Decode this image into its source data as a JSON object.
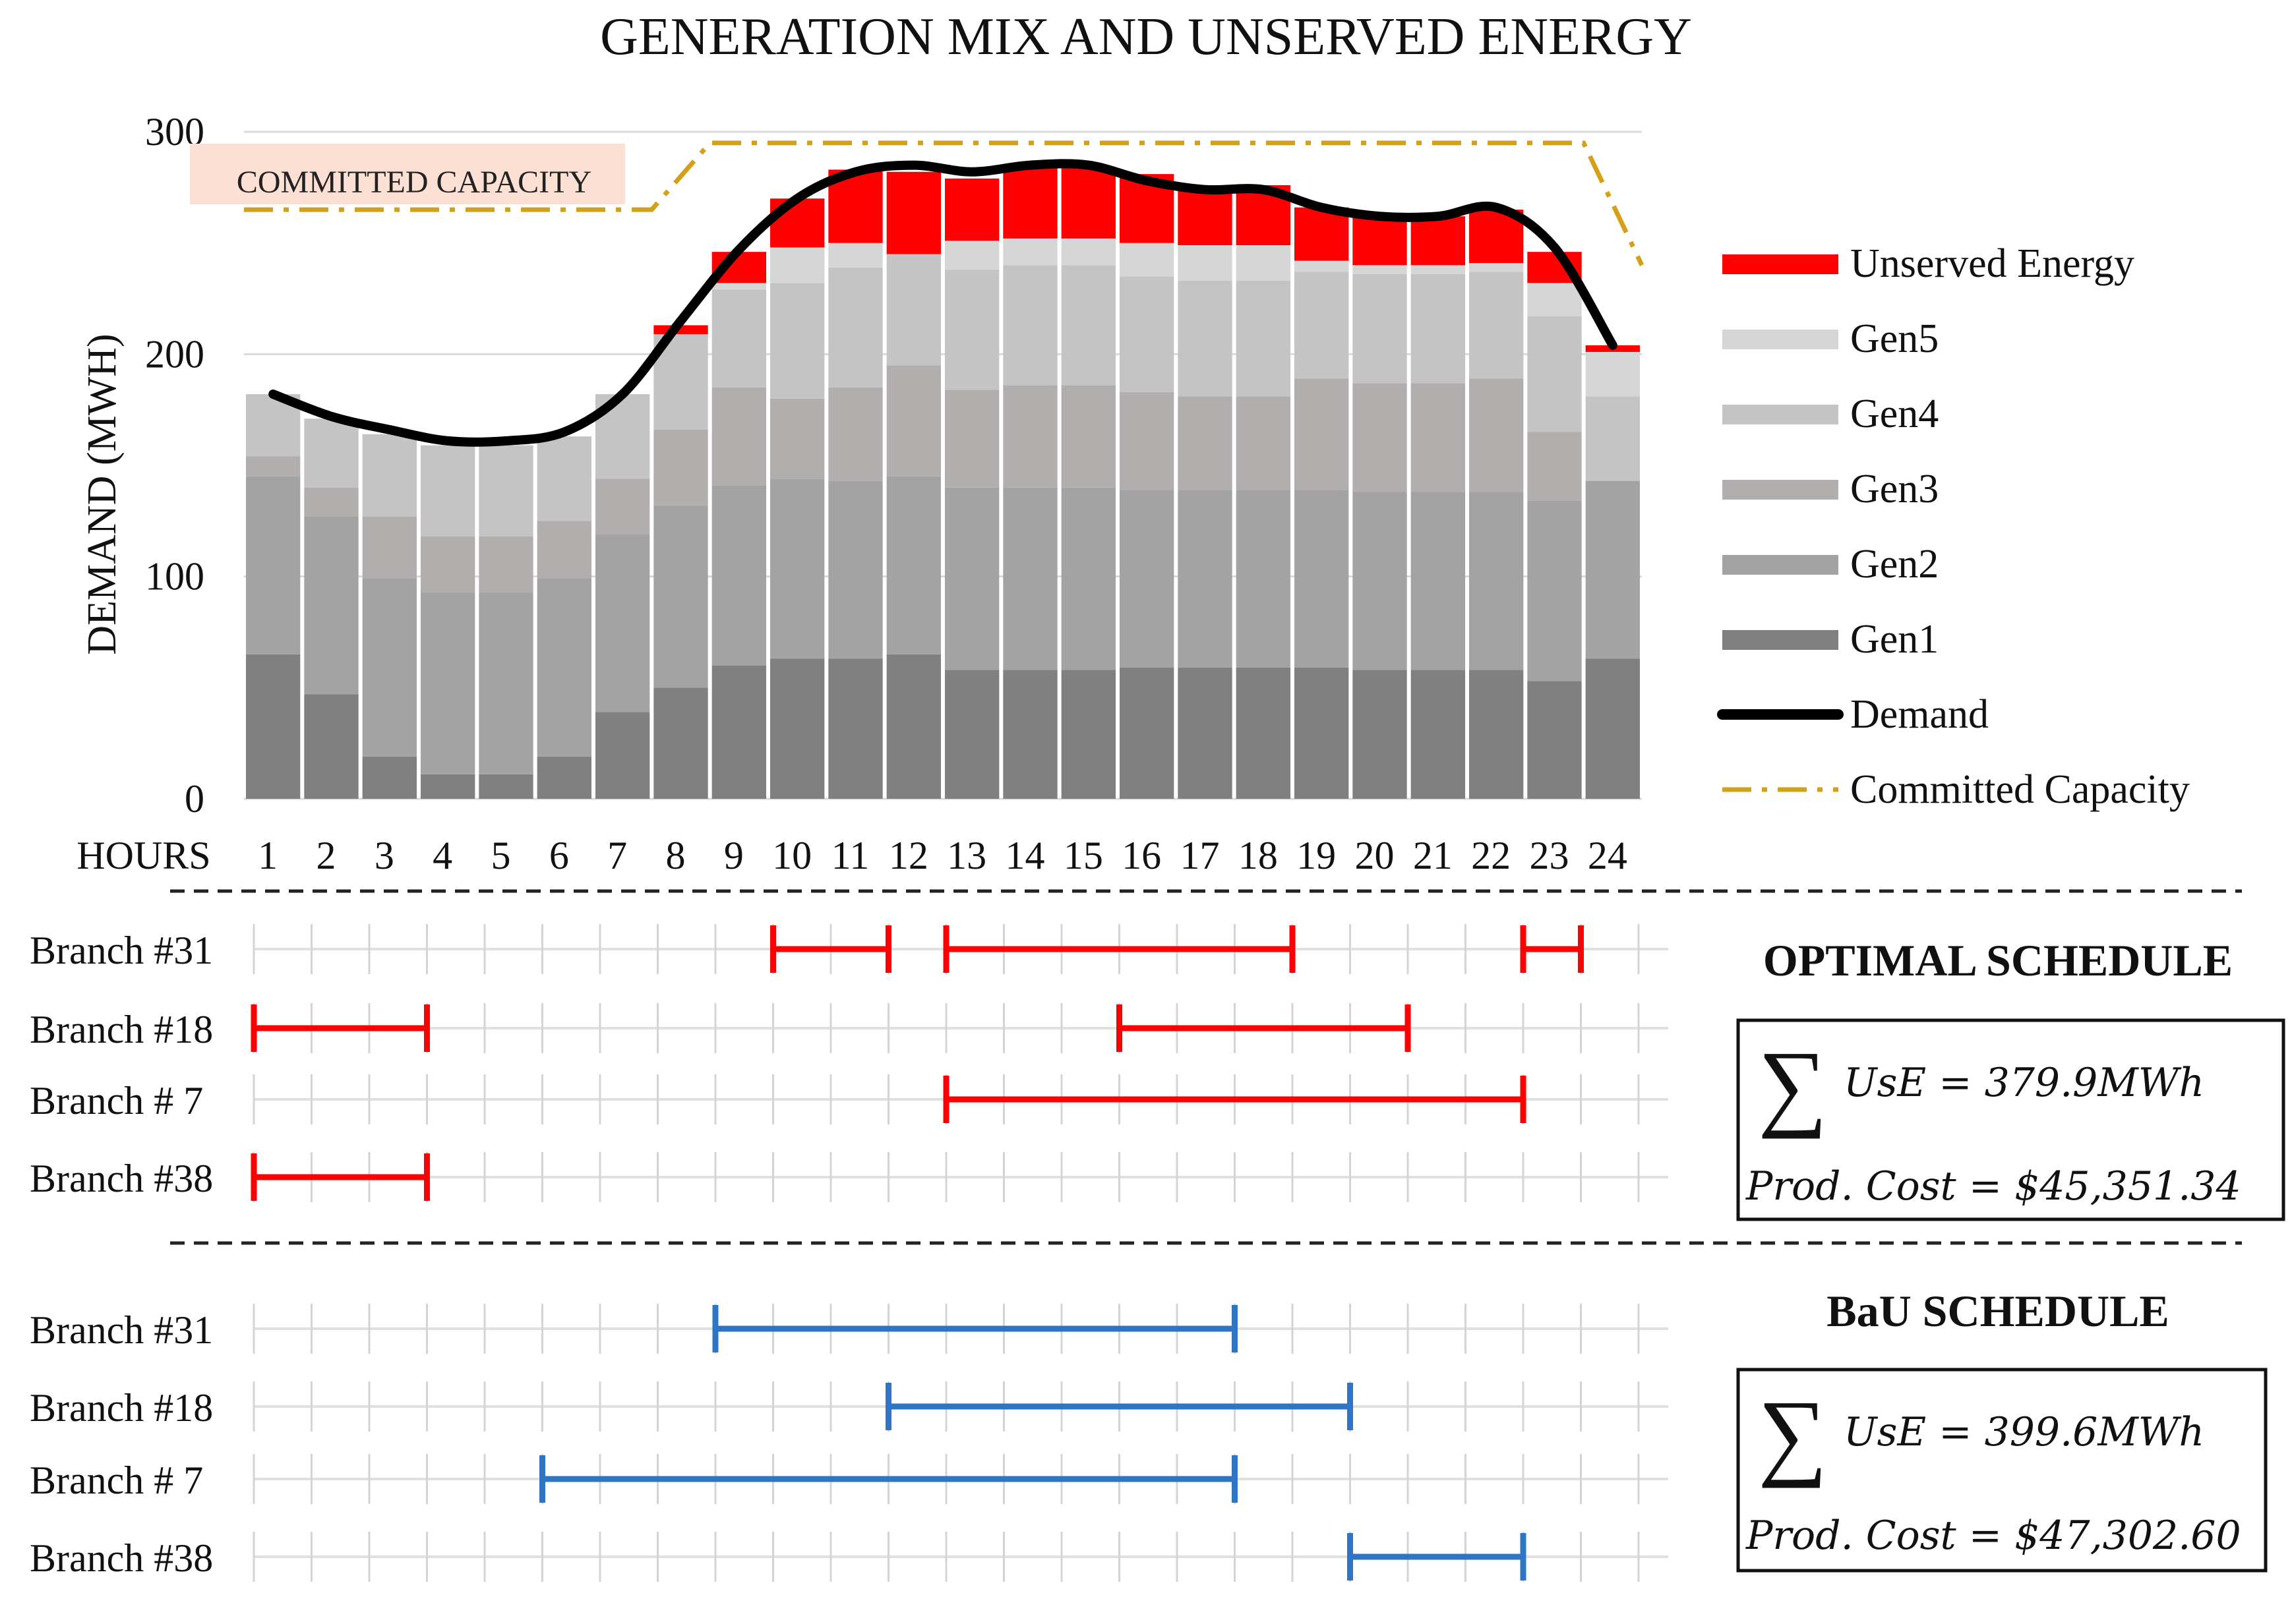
{
  "chart_data": {
    "type": "bar",
    "stacked": true,
    "title": "GENERATION MIX AND UNSERVED ENERGY",
    "xlabel": "HOURS",
    "ylabel": "DEMAND (MWH)",
    "ylim": [
      0,
      300
    ],
    "yticks": [
      0,
      100,
      200,
      300
    ],
    "grid": true,
    "legend_position": "right",
    "categories": [
      "1",
      "2",
      "3",
      "4",
      "5",
      "6",
      "7",
      "8",
      "9",
      "10",
      "11",
      "12",
      "13",
      "14",
      "15",
      "16",
      "17",
      "18",
      "19",
      "20",
      "21",
      "22",
      "23",
      "24"
    ],
    "series": [
      {
        "name": "Gen1",
        "color": "#808080",
        "values": [
          65,
          47,
          19,
          11,
          11,
          19,
          39,
          50,
          60,
          63,
          63,
          65,
          58,
          58,
          58,
          59,
          59,
          59,
          59,
          58,
          58,
          58,
          53,
          63
        ]
      },
      {
        "name": "Gen2",
        "color": "#a3a3a3",
        "values": [
          80,
          80,
          80,
          82,
          82,
          80,
          80,
          82,
          81,
          81,
          80,
          80,
          82,
          82,
          82,
          80,
          80,
          80,
          80,
          80,
          80,
          80,
          81,
          80
        ]
      },
      {
        "name": "Gen3",
        "color": "#b2aeae",
        "values": [
          9,
          13,
          28,
          25,
          25,
          26,
          25,
          34,
          44,
          36,
          42,
          50,
          44,
          46,
          46,
          44,
          42,
          42,
          50,
          49,
          49,
          51,
          31,
          0
        ]
      },
      {
        "name": "Gen4",
        "color": "#c4c4c4",
        "values": [
          28,
          31,
          37,
          41,
          41,
          38,
          38,
          43,
          44,
          52,
          54,
          50,
          54,
          54,
          54,
          52,
          52,
          52,
          48,
          49,
          49,
          48,
          52,
          38
        ]
      },
      {
        "name": "Gen5",
        "color": "#d6d6d6",
        "values": [
          0,
          0,
          0,
          0,
          0,
          0,
          0,
          0,
          3,
          16,
          11,
          0,
          13,
          12,
          12,
          15,
          16,
          16,
          5,
          4,
          4,
          4,
          15,
          20
        ]
      },
      {
        "name": "Unserved Energy",
        "color": "#ff0000",
        "values": [
          0,
          0,
          0,
          0,
          0,
          0,
          0,
          4,
          14,
          22,
          33,
          37,
          28,
          32,
          32,
          31,
          27,
          27,
          24,
          22,
          22,
          24,
          14,
          3
        ]
      }
    ],
    "lines": [
      {
        "name": "Demand",
        "color": "#000000",
        "style": "solid",
        "values": [
          182,
          172,
          166,
          161,
          161,
          165,
          182,
          215,
          247,
          270,
          282,
          285,
          282,
          285,
          285,
          278,
          274,
          274,
          266,
          262,
          262,
          266,
          248,
          204
        ]
      },
      {
        "name": "Committed Capacity",
        "color": "#d4a017",
        "style": "dash-dot",
        "x": [
          0.5,
          7.5,
          8.5,
          23.5,
          24.5
        ],
        "values": [
          265,
          265,
          295,
          295,
          240
        ]
      }
    ],
    "legend": [
      "Unserved Energy",
      "Gen5",
      "Gen4",
      "Gen3",
      "Gen2",
      "Gen1",
      "Demand",
      "Committed Capacity"
    ],
    "annotation": "COMMITTED CAPACITY"
  },
  "schedules": [
    {
      "title": "OPTIMAL SCHEDULE",
      "color": "#ff0000",
      "rows": [
        {
          "label": "Branch #31",
          "spans": [
            [
              9.5,
              11.5
            ],
            [
              12.5,
              18.5
            ],
            [
              22.5,
              23.5
            ]
          ]
        },
        {
          "label": "Branch #18",
          "spans": [
            [
              0.5,
              3.5
            ],
            [
              15.5,
              20.5
            ]
          ]
        },
        {
          "label": "Branch #  7",
          "spans": [
            [
              12.5,
              22.5
            ]
          ]
        },
        {
          "label": "Branch #38",
          "spans": [
            [
              0.5,
              3.5
            ]
          ]
        }
      ],
      "box": {
        "sum_label": "UsE",
        "sum_value": "= 379.9MWh",
        "cost_label": "Prod. Cost",
        "cost_value": "= $45,351.34"
      }
    },
    {
      "title": "BaU SCHEDULE",
      "color": "#2e75c6",
      "rows": [
        {
          "label": "Branch #31",
          "spans": [
            [
              8.5,
              17.5
            ]
          ]
        },
        {
          "label": "Branch #18",
          "spans": [
            [
              11.5,
              19.5
            ]
          ]
        },
        {
          "label": "Branch #  7",
          "spans": [
            [
              5.5,
              17.5
            ]
          ]
        },
        {
          "label": "Branch #38",
          "spans": [
            [
              19.5,
              22.5
            ]
          ]
        }
      ],
      "box": {
        "sum_label": "UsE",
        "sum_value": "= 399.6MWh",
        "cost_label": "Prod. Cost",
        "cost_value": "= $47,302.60"
      }
    }
  ]
}
